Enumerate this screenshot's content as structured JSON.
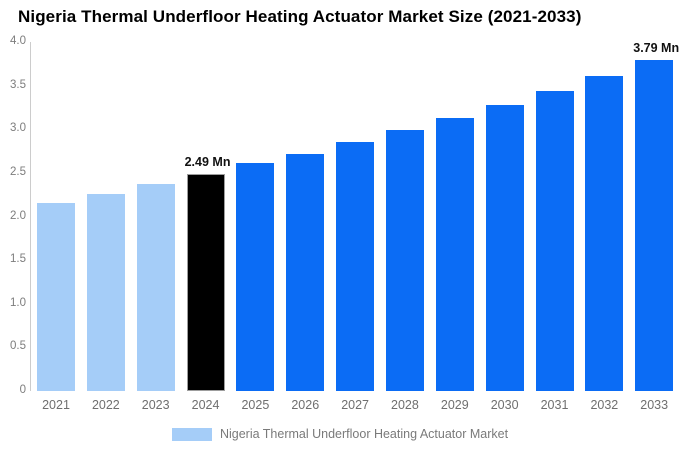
{
  "header": {
    "title": "Nigeria Thermal Underfloor Heating Actuator Market Size (2021-2033)"
  },
  "chart_data": {
    "type": "bar",
    "title": "Nigeria Thermal Underfloor Heating Actuator Market Size (2021-2033)",
    "categories": [
      "2021",
      "2022",
      "2023",
      "2024",
      "2025",
      "2026",
      "2027",
      "2028",
      "2029",
      "2030",
      "2031",
      "2032",
      "2033"
    ],
    "series": [
      {
        "name": "Nigeria Thermal Underfloor Heating Actuator Market",
        "values": [
          2.16,
          2.26,
          2.37,
          2.49,
          2.61,
          2.72,
          2.85,
          2.99,
          3.13,
          3.28,
          3.44,
          3.61,
          3.79
        ]
      }
    ],
    "unit": "Mn",
    "value_labels": {
      "2024": "2.49 Mn",
      "2033": "3.79 Mn"
    },
    "xlabel": "",
    "ylabel": "",
    "ylim": [
      0,
      4
    ],
    "ytick_labels": [
      "4.0",
      "3.5",
      "3.0",
      "2.5",
      "2.0",
      "1.5",
      "1.0",
      "0.5",
      "0"
    ],
    "ytick_values": [
      4.0,
      3.5,
      3.0,
      2.5,
      2.0,
      1.5,
      1.0,
      0.5,
      0
    ],
    "grid": false,
    "legend_position": "bottom",
    "colors": {
      "historical_bar": "#a5cdf8",
      "highlight_bar": "#000000",
      "forecast_bar": "#0b6cf5",
      "axis_line": "#cccccc",
      "tick_text": "#7d7d7d",
      "title_text": "#000000"
    },
    "bar_color_roles": [
      "historical",
      "historical",
      "historical",
      "highlight",
      "forecast",
      "forecast",
      "forecast",
      "forecast",
      "forecast",
      "forecast",
      "forecast",
      "forecast",
      "forecast"
    ]
  },
  "legend": {
    "label": "Nigeria Thermal Underfloor Heating Actuator Market"
  }
}
